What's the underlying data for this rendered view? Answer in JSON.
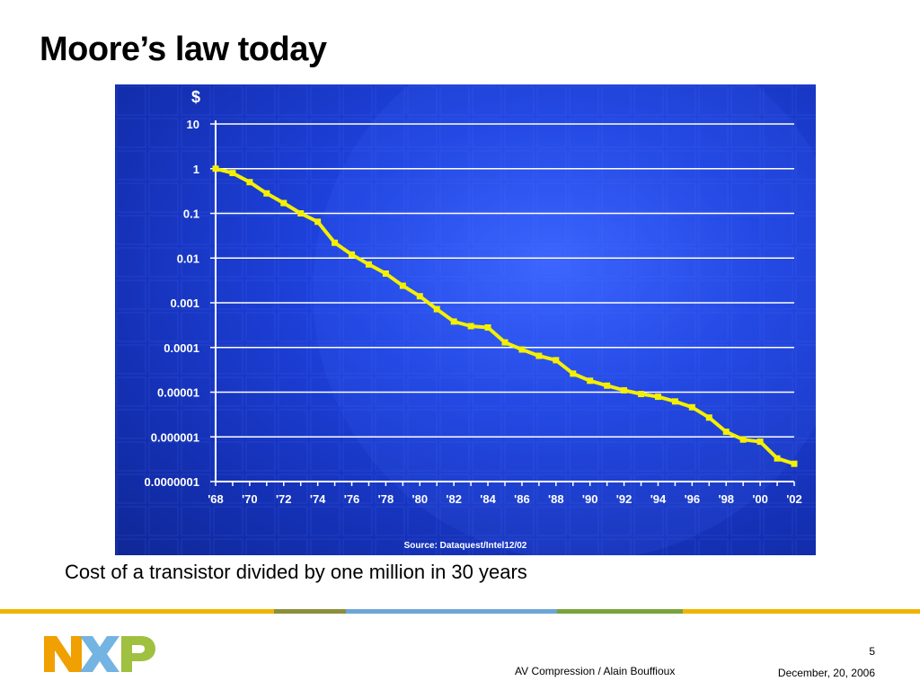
{
  "slide": {
    "title": "Moore’s law today",
    "caption": "Cost of a transistor divided by one million in 30 years",
    "page_number": "5",
    "footer_left": "AV Compression / Alain Bouffioux",
    "footer_right": "December, 20, 2006",
    "logo_text": "NXP"
  },
  "colors": {
    "series": "#f4f000",
    "grid": "#ffffff",
    "panel": "#1f43e0",
    "footer_segments": [
      "#f0b400",
      "#f0b400",
      "#8a8f3a",
      "#6ca5d8",
      "#7aa23a",
      "#f0b400"
    ],
    "logo_orange": "#f0a000",
    "logo_blue": "#6cb0e0",
    "logo_green": "#a0c040"
  },
  "chart_data": {
    "type": "line",
    "scale": "log",
    "ylabel": "$",
    "ytick_labels": [
      "10",
      "1",
      "0.1",
      "0.01",
      "0.001",
      "0.0001",
      "0.00001",
      "0.000001",
      "0.0000001"
    ],
    "xtick_labels": [
      "'68",
      "'70",
      "'72",
      "'74",
      "'76",
      "'78",
      "'80",
      "'82",
      "'84",
      "'86",
      "'88",
      "'90",
      "'92",
      "'94",
      "'96",
      "'98",
      "'00",
      "'02"
    ],
    "xlim": [
      1968,
      2002
    ],
    "ylim_exponent": [
      -7,
      1
    ],
    "source": "Source: Dataquest/Intel12/02",
    "grid": true,
    "series": [
      {
        "x": [
          1968,
          1969,
          1970,
          1971,
          1972,
          1973,
          1974,
          1975,
          1976,
          1977,
          1978,
          1979,
          1980,
          1981,
          1982,
          1983,
          1984,
          1985,
          1986,
          1987,
          1988,
          1989,
          1990,
          1991,
          1992,
          1993,
          1994,
          1995,
          1996,
          1997,
          1998,
          1999,
          2000,
          2001,
          2002
        ],
        "y": [
          1,
          0.8,
          0.5,
          0.28,
          0.17,
          0.1,
          0.065,
          0.022,
          0.012,
          0.0072,
          0.0045,
          0.0024,
          0.0014,
          0.00072,
          0.00038,
          0.0003,
          0.00028,
          0.00013,
          9e-05,
          6.5e-05,
          5.2e-05,
          2.6e-05,
          1.8e-05,
          1.4e-05,
          1.1e-05,
          9.1e-06,
          7.9e-06,
          6.2e-06,
          4.6e-06,
          2.7e-06,
          1.3e-06,
          8.7e-07,
          7.8e-07,
          3.3e-07,
          2.5e-07
        ]
      }
    ]
  }
}
